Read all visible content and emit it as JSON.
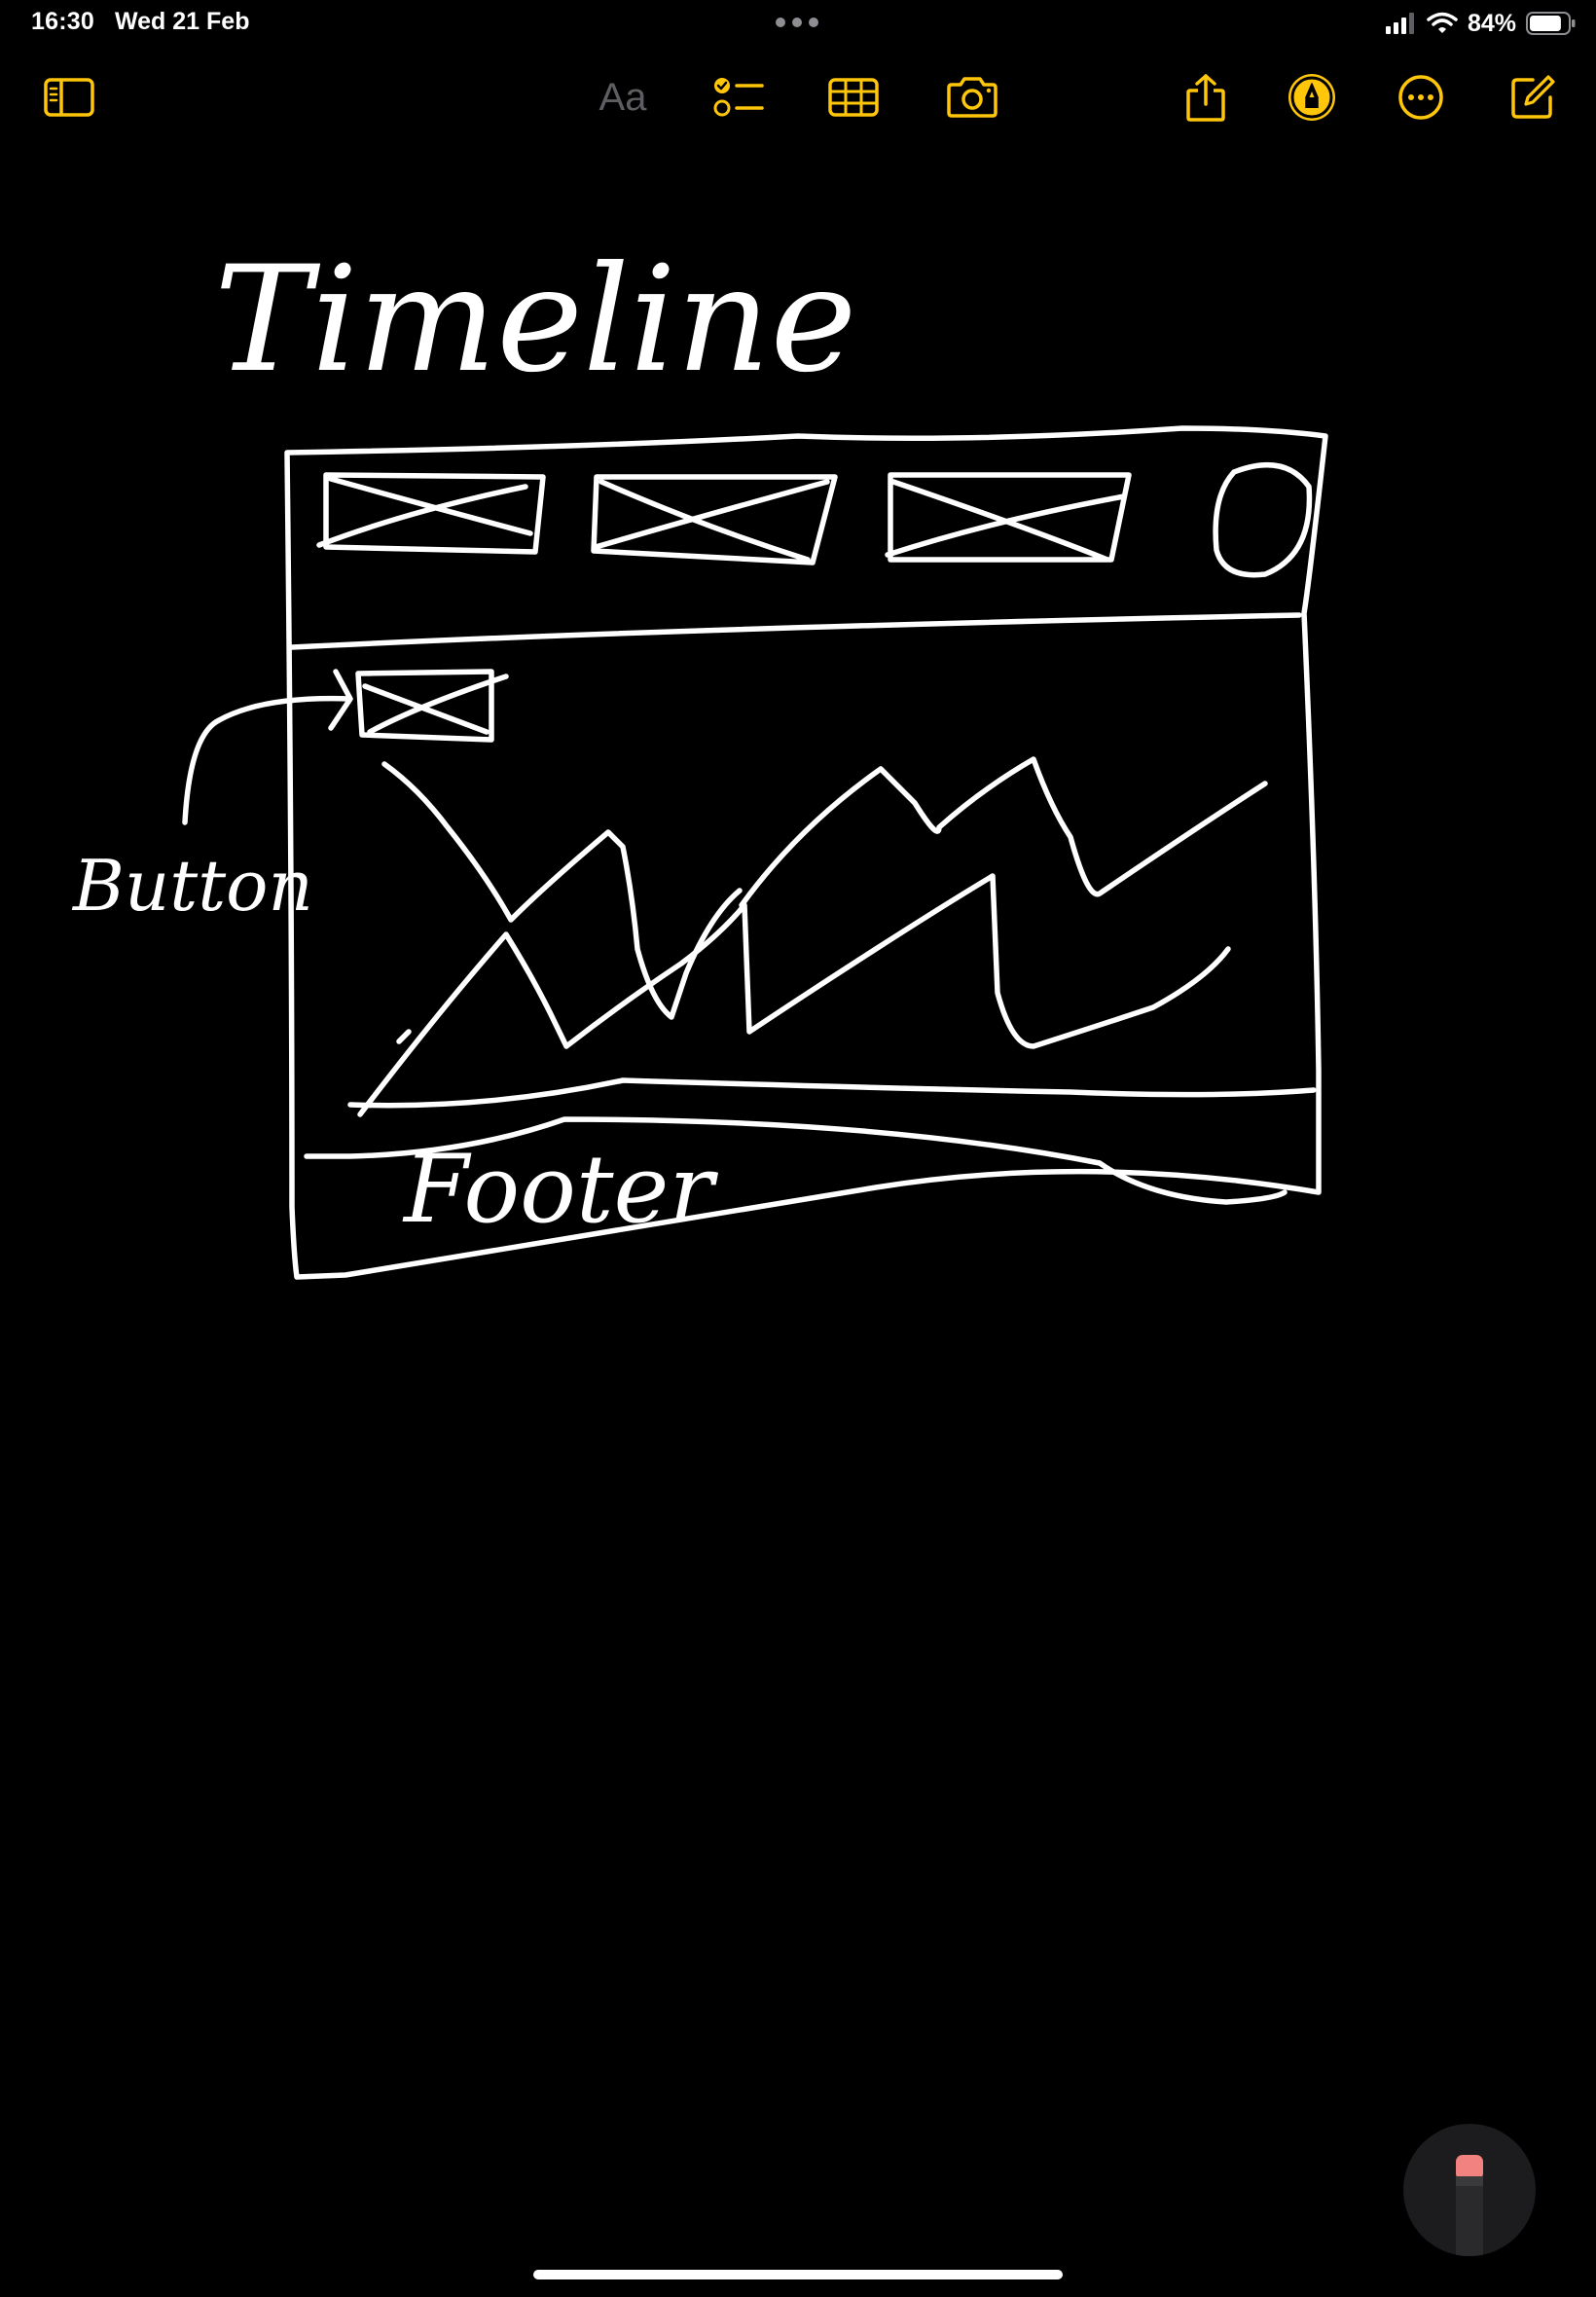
{
  "status_bar": {
    "time": "16:30",
    "date": "Wed 21 Feb",
    "battery_percent": "84%",
    "battery_level": 0.84
  },
  "toolbar": {
    "format_label": "Aa",
    "accent_color": "#ffc60a"
  },
  "sketch": {
    "title": "Timeline",
    "button_annotation": "Button",
    "footer_label": "Footer",
    "ink_color": "#ffffff"
  }
}
